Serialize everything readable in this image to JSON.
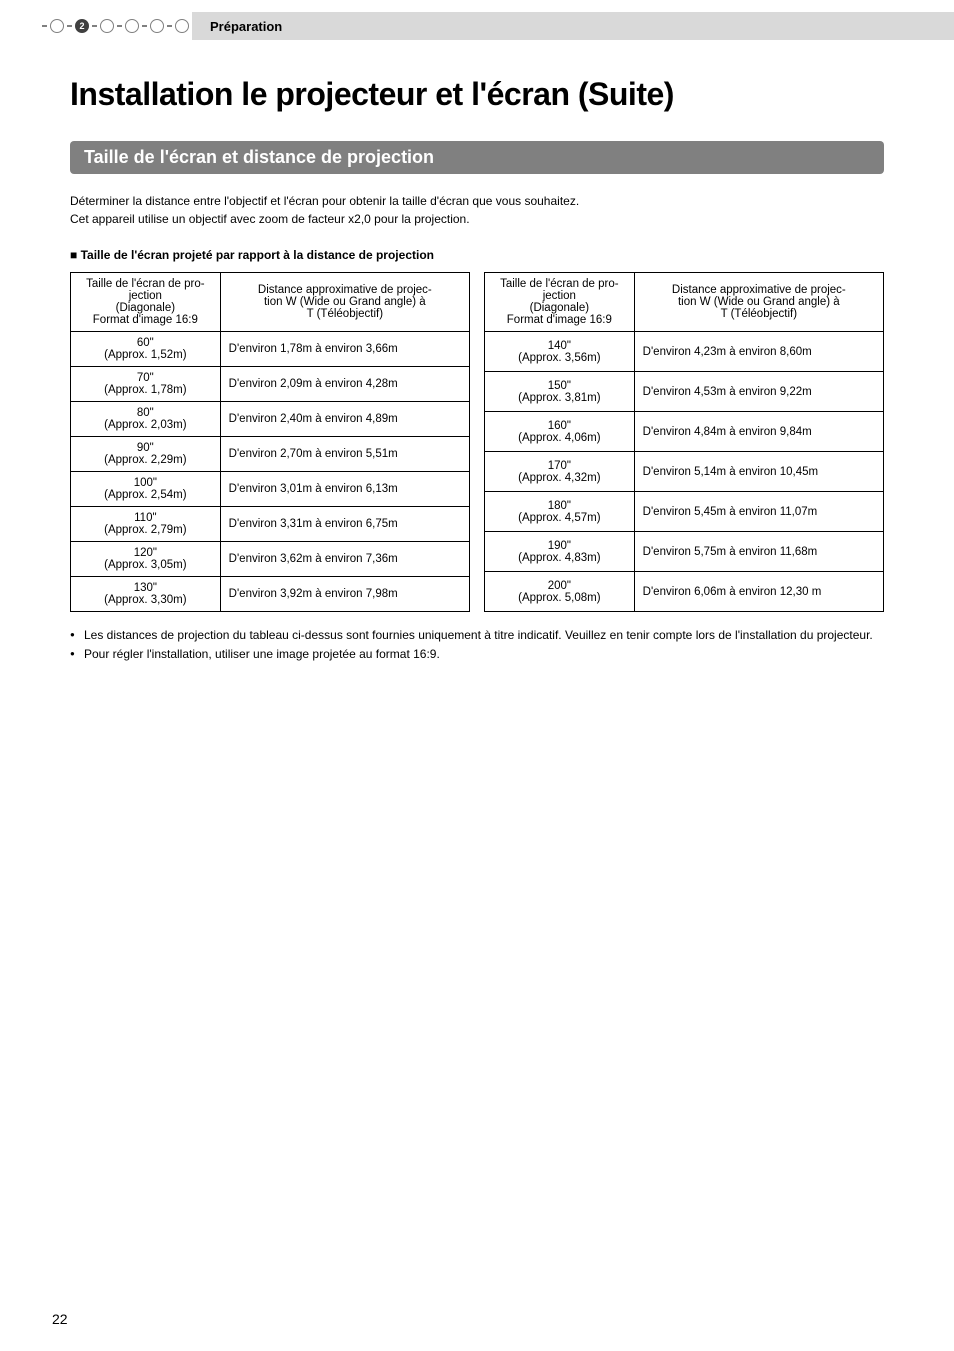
{
  "header": {
    "step_number": "2",
    "label": "Préparation"
  },
  "title": "Installation le projecteur et l'écran (Suite)",
  "section_title": "Taille de l'écran et distance de projection",
  "intro_line1": "Déterminer la distance entre l'objectif et l'écran pour obtenir la taille d'écran que vous souhaitez.",
  "intro_line2": "Cet appareil utilise un objectif avec zoom de facteur x2,0 pour la projection.",
  "subheading": "■ Taille de l'écran projeté par rapport à la distance de projection",
  "table_headers": {
    "col_size_l1": "Taille de l'écran de pro-",
    "col_size_l2": "jection",
    "col_size_l3": "(Diagonale)",
    "col_size_l4": "Format d'image 16:9",
    "col_dist_l1": "Distance approximative de projec-",
    "col_dist_l2": "tion W (Wide ou Grand angle) à",
    "col_dist_l3": "T (Téléobjectif)"
  },
  "styling": {
    "header_bar_bg": "#d9d9d9",
    "section_bar_bg": "#808080",
    "section_bar_color": "#ffffff",
    "border_color": "#000000",
    "title_fontsize": 32,
    "body_fontsize": 12,
    "table_fontsize": 11.5,
    "col_size_width": 150,
    "col_dist_width": 250
  },
  "table1": {
    "rows": [
      {
        "size": "60\"",
        "approx": "(Approx. 1,52m)",
        "dist": "D'environ 1,78m à environ 3,66m"
      },
      {
        "size": "70\"",
        "approx": "(Approx. 1,78m)",
        "dist": "D'environ 2,09m à environ 4,28m"
      },
      {
        "size": "80\"",
        "approx": "(Approx. 2,03m)",
        "dist": "D'environ 2,40m à environ 4,89m"
      },
      {
        "size": "90\"",
        "approx": "(Approx. 2,29m)",
        "dist": "D'environ 2,70m à environ 5,51m"
      },
      {
        "size": "100\"",
        "approx": "(Approx. 2,54m)",
        "dist": "D'environ 3,01m à environ 6,13m"
      },
      {
        "size": "110\"",
        "approx": "(Approx. 2,79m)",
        "dist": "D'environ 3,31m à environ 6,75m"
      },
      {
        "size": "120\"",
        "approx": "(Approx. 3,05m)",
        "dist": "D'environ 3,62m à environ 7,36m"
      },
      {
        "size": "130\"",
        "approx": "(Approx. 3,30m)",
        "dist": "D'environ 3,92m à environ 7,98m"
      }
    ]
  },
  "table2": {
    "rows": [
      {
        "size": "140\"",
        "approx": "(Approx. 3,56m)",
        "dist": "D'environ 4,23m à environ 8,60m"
      },
      {
        "size": "150\"",
        "approx": "(Approx. 3,81m)",
        "dist": "D'environ 4,53m à environ 9,22m"
      },
      {
        "size": "160\"",
        "approx": "(Approx. 4,06m)",
        "dist": "D'environ 4,84m à environ 9,84m"
      },
      {
        "size": "170\"",
        "approx": "(Approx. 4,32m)",
        "dist": "D'environ 5,14m à environ 10,45m"
      },
      {
        "size": "180\"",
        "approx": "(Approx. 4,57m)",
        "dist": "D'environ 5,45m à environ 11,07m"
      },
      {
        "size": "190\"",
        "approx": "(Approx. 4,83m)",
        "dist": "D'environ 5,75m à environ 11,68m"
      },
      {
        "size": "200\"",
        "approx": "(Approx. 5,08m)",
        "dist": "D'environ 6,06m à environ 12,30 m"
      }
    ]
  },
  "notes": {
    "n1": "Les distances de projection du tableau ci-dessus sont fournies uniquement à titre indicatif. Veuillez en tenir compte lors de l'installation du projecteur.",
    "n2": "Pour régler l'installation, utiliser une image projetée au format 16:9."
  },
  "page_number": "22"
}
